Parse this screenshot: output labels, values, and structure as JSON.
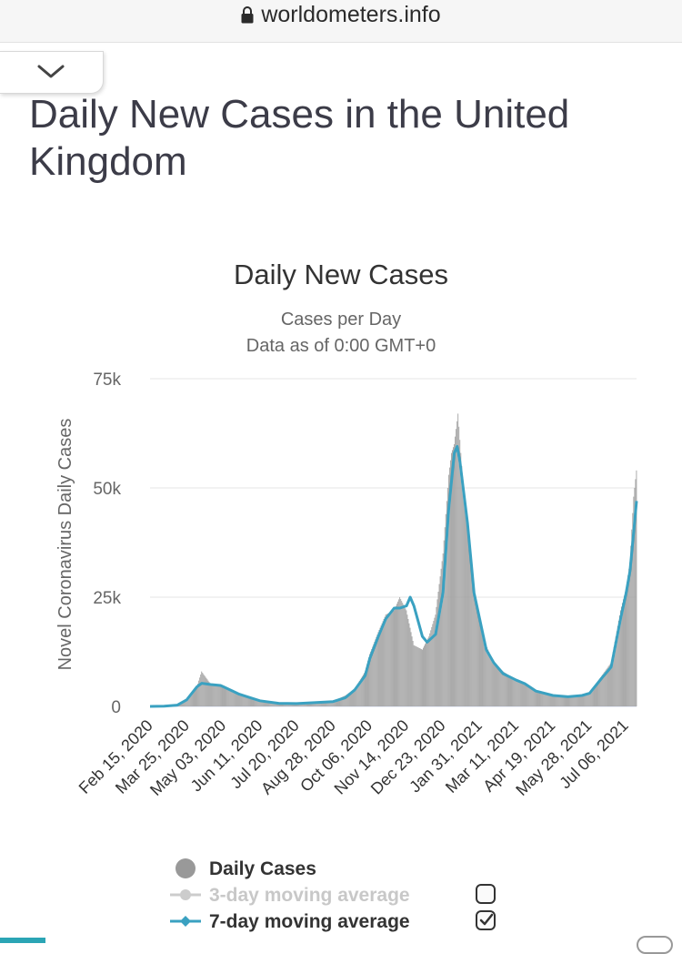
{
  "browser": {
    "url": "worldometers.info"
  },
  "page": {
    "title": "Daily New Cases in the United Kingdom"
  },
  "colors": {
    "bars": "#a0a0a0",
    "seven_day_line": "#3aa1c1",
    "three_day_line": "#cccccc",
    "grid": "#e6e6e6",
    "text": "#333333"
  },
  "chart_data": {
    "type": "bar",
    "title": "Daily New Cases",
    "subtitle_lines": [
      "Cases per Day",
      "Data as of 0:00 GMT+0"
    ],
    "ylabel": "Novel Coronavirus Daily Cases",
    "xlabel": "",
    "ylim": [
      0,
      75000
    ],
    "y_ticks": [
      0,
      25000,
      50000,
      75000
    ],
    "y_tick_labels": [
      "0",
      "25k",
      "50k",
      "75k"
    ],
    "x_range": [
      "2020-02-15",
      "2021-07-17"
    ],
    "x_tick_labels": [
      "Feb 15, 2020",
      "Mar 25, 2020",
      "May 03, 2020",
      "Jun 11, 2020",
      "Jul 20, 2020",
      "Aug 28, 2020",
      "Oct 06, 2020",
      "Nov 14, 2020",
      "Dec 23, 2020",
      "Jan 31, 2021",
      "Mar 11, 2021",
      "Apr 19, 2021",
      "May 28, 2021",
      "Jul 06, 2021"
    ],
    "grid": true,
    "legend_position": "bottom",
    "series": [
      {
        "name": "Daily Cases",
        "type": "bar",
        "x": [
          "2020-02-15",
          "2020-03-01",
          "2020-03-15",
          "2020-03-25",
          "2020-04-05",
          "2020-04-10",
          "2020-04-20",
          "2020-05-03",
          "2020-05-20",
          "2020-06-11",
          "2020-07-01",
          "2020-07-20",
          "2020-08-10",
          "2020-08-28",
          "2020-09-10",
          "2020-09-20",
          "2020-10-01",
          "2020-10-06",
          "2020-10-15",
          "2020-10-23",
          "2020-11-01",
          "2020-11-07",
          "2020-11-14",
          "2020-11-22",
          "2020-12-01",
          "2020-12-08",
          "2020-12-15",
          "2020-12-23",
          "2020-12-29",
          "2021-01-01",
          "2021-01-04",
          "2021-01-08",
          "2021-01-12",
          "2021-01-18",
          "2021-01-25",
          "2021-01-31",
          "2021-02-07",
          "2021-02-15",
          "2021-02-25",
          "2021-03-11",
          "2021-03-20",
          "2021-04-01",
          "2021-04-19",
          "2021-05-05",
          "2021-05-20",
          "2021-05-28",
          "2021-06-10",
          "2021-06-20",
          "2021-06-30",
          "2021-07-06",
          "2021-07-10",
          "2021-07-14",
          "2021-07-17"
        ],
        "values": [
          0,
          20,
          300,
          1500,
          4500,
          8000,
          5000,
          4500,
          2500,
          1200,
          700,
          600,
          900,
          1200,
          2500,
          4000,
          8000,
          12000,
          17000,
          21000,
          22000,
          25000,
          22000,
          14000,
          13000,
          16000,
          21000,
          35000,
          53000,
          58000,
          60000,
          67000,
          55000,
          40000,
          26000,
          21000,
          14000,
          10000,
          8000,
          6000,
          5500,
          3500,
          2500,
          2200,
          2500,
          3000,
          7000,
          10000,
          22000,
          27000,
          33000,
          48000,
          54000
        ]
      },
      {
        "name": "3-day moving average",
        "type": "line",
        "enabled": false
      },
      {
        "name": "7-day moving average",
        "type": "line",
        "enabled": true,
        "x": [
          "2020-02-15",
          "2020-03-01",
          "2020-03-15",
          "2020-03-25",
          "2020-04-05",
          "2020-04-10",
          "2020-04-20",
          "2020-04-30",
          "2020-05-03",
          "2020-05-20",
          "2020-06-11",
          "2020-07-01",
          "2020-07-20",
          "2020-08-10",
          "2020-08-28",
          "2020-09-10",
          "2020-09-20",
          "2020-10-01",
          "2020-10-06",
          "2020-10-15",
          "2020-10-23",
          "2020-11-01",
          "2020-11-07",
          "2020-11-14",
          "2020-11-18",
          "2020-11-22",
          "2020-12-01",
          "2020-12-06",
          "2020-12-15",
          "2020-12-23",
          "2020-12-29",
          "2021-01-04",
          "2021-01-07",
          "2021-01-10",
          "2021-01-18",
          "2021-01-25",
          "2021-01-31",
          "2021-02-07",
          "2021-02-15",
          "2021-02-25",
          "2021-03-11",
          "2021-03-20",
          "2021-04-01",
          "2021-04-19",
          "2021-05-05",
          "2021-05-20",
          "2021-05-28",
          "2021-06-10",
          "2021-06-20",
          "2021-06-30",
          "2021-07-06",
          "2021-07-10",
          "2021-07-14",
          "2021-07-17"
        ],
        "values": [
          0,
          50,
          300,
          1500,
          4500,
          5300,
          5000,
          4800,
          4500,
          2800,
          1300,
          700,
          650,
          900,
          1100,
          2000,
          3800,
          7000,
          11000,
          16000,
          20000,
          22500,
          22500,
          23000,
          25000,
          23000,
          16000,
          14700,
          16500,
          26000,
          45000,
          58000,
          59500,
          56000,
          42000,
          26000,
          20000,
          13000,
          10000,
          7500,
          6000,
          5200,
          3500,
          2500,
          2200,
          2500,
          3000,
          6500,
          9000,
          20000,
          26000,
          31000,
          40000,
          47000
        ]
      }
    ]
  },
  "legend": {
    "items": [
      {
        "label": "Daily Cases",
        "checked": null
      },
      {
        "label": "3-day moving average",
        "checked": false
      },
      {
        "label": "7-day moving average",
        "checked": true
      }
    ]
  }
}
